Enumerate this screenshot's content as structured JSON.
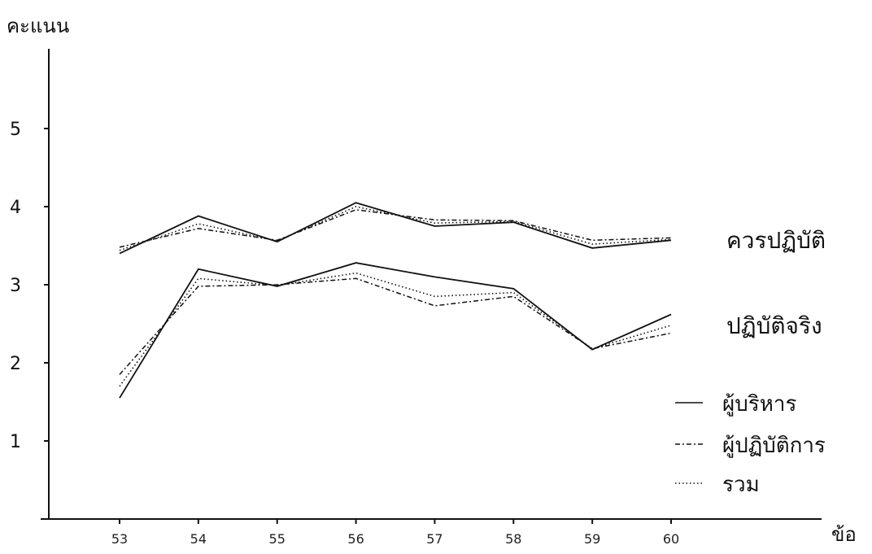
{
  "chart_data": {
    "type": "line",
    "ylabel": "คะแนน",
    "xlabel": "ข้อ",
    "x": [
      53,
      54,
      55,
      56,
      57,
      58,
      59,
      60
    ],
    "x_tick_labels": [
      "53",
      "54",
      "55",
      "56",
      "57",
      "58",
      "59",
      "60"
    ],
    "y_ticks": [
      1,
      2,
      3,
      4,
      5
    ],
    "ylim": [
      0,
      5.8
    ],
    "grid": false,
    "legend": {
      "placement": "right",
      "entries": [
        {
          "label": "ผู้บริหาร",
          "style": "solid"
        },
        {
          "label": "ผู้ปฏิบัติการ",
          "style": "dashdot"
        },
        {
          "label": "รวม",
          "style": "dotted"
        }
      ]
    },
    "groups": [
      {
        "label": "ควรปฏิบัติ",
        "series": [
          {
            "name": "ผู้บริหาร",
            "style": "solid",
            "values": [
              3.4,
              3.88,
              3.55,
              4.05,
              3.75,
              3.8,
              3.47,
              3.57
            ]
          },
          {
            "name": "ผู้ปฏิบัติการ",
            "style": "dashdot",
            "values": [
              3.48,
              3.72,
              3.57,
              3.96,
              3.83,
              3.82,
              3.57,
              3.6
            ]
          },
          {
            "name": "รวม",
            "style": "dotted",
            "values": [
              3.44,
              3.78,
              3.56,
              4.0,
              3.79,
              3.81,
              3.52,
              3.58
            ]
          }
        ]
      },
      {
        "label": "ปฏิบัติจริง",
        "series": [
          {
            "name": "ผู้บริหาร",
            "style": "solid",
            "values": [
              1.55,
              3.2,
              2.98,
              3.28,
              3.1,
              2.95,
              2.17,
              2.62
            ]
          },
          {
            "name": "ผู้ปฏิบัติการ",
            "style": "dashdot",
            "values": [
              1.85,
              2.98,
              3.0,
              3.08,
              2.73,
              2.85,
              2.18,
              2.38
            ]
          },
          {
            "name": "รวม",
            "style": "dotted",
            "values": [
              1.7,
              3.08,
              2.99,
              3.15,
              2.85,
              2.9,
              2.18,
              2.48
            ]
          }
        ]
      }
    ]
  }
}
